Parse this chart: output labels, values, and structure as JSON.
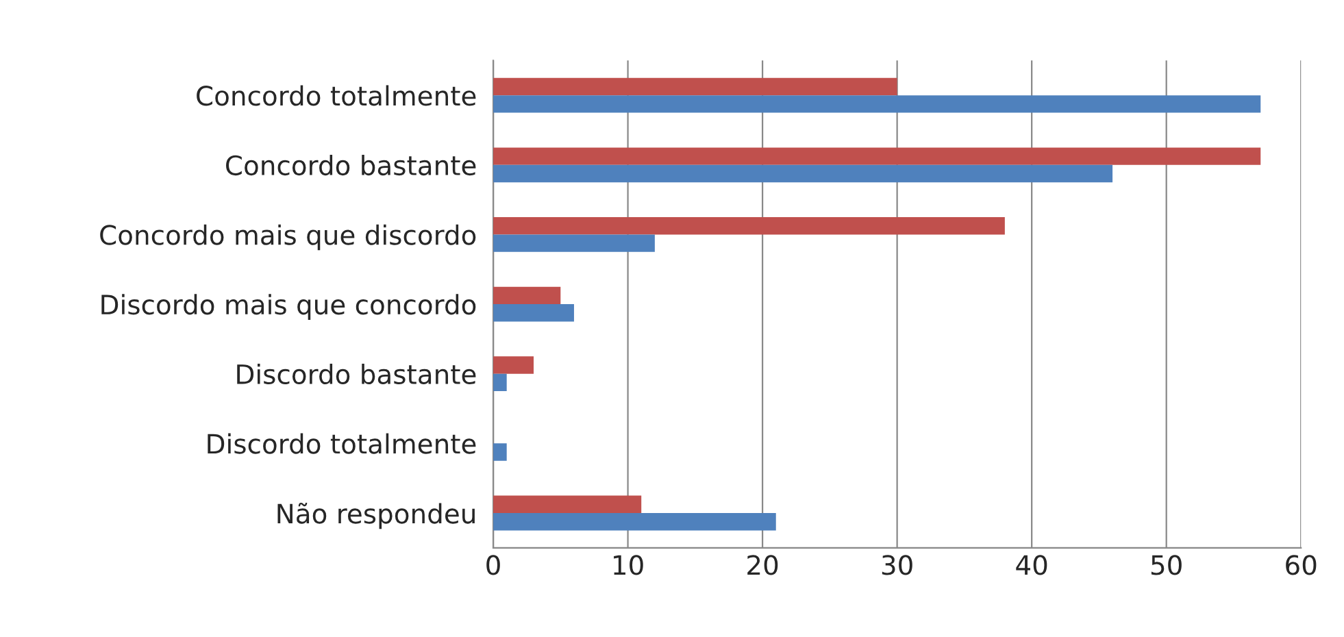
{
  "chart_data": {
    "type": "bar",
    "orientation": "horizontal",
    "categories": [
      "Concordo totalmente",
      "Concordo bastante",
      "Concordo mais que discordo",
      "Discordo mais que concordo",
      "Discordo bastante",
      "Discordo totalmente",
      "Não respondeu"
    ],
    "series": [
      {
        "color": "#c0504d",
        "values": [
          30,
          57,
          38,
          5,
          3,
          null,
          11
        ]
      },
      {
        "color": "#4f81bd",
        "values": [
          57,
          46,
          12,
          6,
          1,
          1,
          21
        ]
      }
    ],
    "xlim": [
      0,
      60
    ],
    "xticks": [
      0,
      10,
      20,
      30,
      40,
      50,
      60
    ],
    "grid": "x",
    "legend": false
  }
}
